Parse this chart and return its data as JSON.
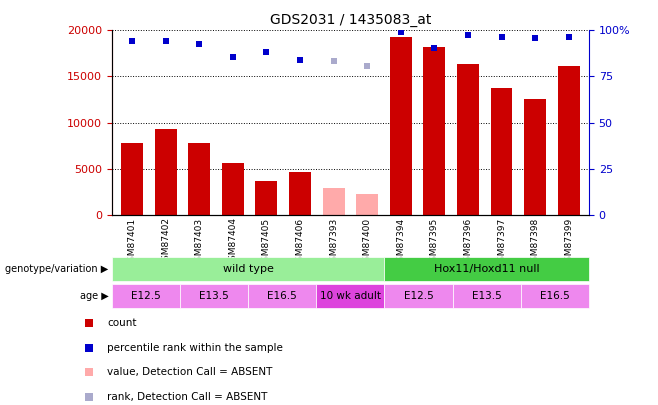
{
  "title": "GDS2031 / 1435083_at",
  "samples": [
    "GSM87401",
    "GSM87402",
    "GSM87403",
    "GSM87404",
    "GSM87405",
    "GSM87406",
    "GSM87393",
    "GSM87400",
    "GSM87394",
    "GSM87395",
    "GSM87396",
    "GSM87397",
    "GSM87398",
    "GSM87399"
  ],
  "bar_values": [
    7800,
    9300,
    7800,
    5600,
    3700,
    4600,
    2900,
    2200,
    19300,
    18200,
    16400,
    13800,
    12500,
    16100
  ],
  "bar_absent": [
    false,
    false,
    false,
    false,
    false,
    false,
    true,
    true,
    false,
    false,
    false,
    false,
    false,
    false
  ],
  "percentile_values": [
    94,
    94,
    92.5,
    85.5,
    88,
    84,
    83.5,
    80.5,
    99,
    90.5,
    97.5,
    96.5,
    96,
    96.5
  ],
  "percentile_absent": [
    false,
    false,
    false,
    false,
    false,
    false,
    true,
    true,
    false,
    false,
    false,
    false,
    false,
    false
  ],
  "bar_color_normal": "#cc0000",
  "bar_color_absent": "#ffaaaa",
  "dot_color_normal": "#0000cc",
  "dot_color_absent": "#aaaacc",
  "ylim_left": [
    0,
    20000
  ],
  "ylim_right": [
    0,
    100
  ],
  "yticks_left": [
    0,
    5000,
    10000,
    15000,
    20000
  ],
  "yticks_right": [
    0,
    25,
    50,
    75,
    100
  ],
  "genotype_groups": [
    {
      "label": "wild type",
      "start": 0,
      "end": 8,
      "color": "#99ee99"
    },
    {
      "label": "Hox11/Hoxd11 null",
      "start": 8,
      "end": 14,
      "color": "#44cc44"
    }
  ],
  "age_groups": [
    {
      "label": "E12.5",
      "start": 0,
      "end": 2,
      "color": "#ee88ee"
    },
    {
      "label": "E13.5",
      "start": 2,
      "end": 4,
      "color": "#ee88ee"
    },
    {
      "label": "E16.5",
      "start": 4,
      "end": 6,
      "color": "#ee88ee"
    },
    {
      "label": "10 wk adult",
      "start": 6,
      "end": 8,
      "color": "#dd44dd"
    },
    {
      "label": "E12.5",
      "start": 8,
      "end": 10,
      "color": "#ee88ee"
    },
    {
      "label": "E13.5",
      "start": 10,
      "end": 12,
      "color": "#ee88ee"
    },
    {
      "label": "E16.5",
      "start": 12,
      "end": 14,
      "color": "#ee88ee"
    }
  ],
  "legend_items": [
    {
      "label": "count",
      "color": "#cc0000"
    },
    {
      "label": "percentile rank within the sample",
      "color": "#0000cc"
    },
    {
      "label": "value, Detection Call = ABSENT",
      "color": "#ffaaaa"
    },
    {
      "label": "rank, Detection Call = ABSENT",
      "color": "#aaaacc"
    }
  ],
  "background_color": "#ffffff"
}
